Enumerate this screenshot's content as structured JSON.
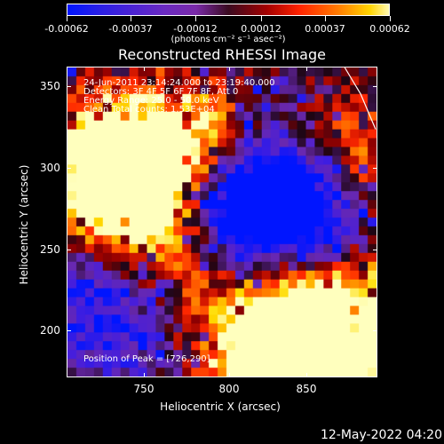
{
  "colorbar": {
    "ticks": [
      "-0.00062",
      "-0.00037",
      "-0.00012",
      "0.00012",
      "0.00037",
      "0.00062"
    ],
    "units": "(photons cm⁻² s⁻¹ asec⁻²)"
  },
  "title": "Reconstructed RHESSI Image",
  "overlay": {
    "time": "24-Jun-2011 23:14:24.000 to 23:19:40.000",
    "detectors": "Detectors: 3F 4F 5F 6F 7F 8F, Att 0",
    "energy": "Energy Range: 25.0 - 50.0 keV",
    "clean": "Clean    Total counts: 1.53E+04",
    "peak": "Position of Peak = [726,290]"
  },
  "chart_data": {
    "type": "heatmap",
    "title": "Reconstructed RHESSI Image",
    "xlabel": "Heliocentric X (arcsec)",
    "ylabel": "Heliocentric Y (arcsec)",
    "xlim": [
      700,
      895
    ],
    "ylim": [
      170,
      362
    ],
    "xticks": [
      750,
      800,
      850
    ],
    "yticks": [
      200,
      250,
      300,
      350
    ],
    "colorbar_ticks": [
      -0.00062,
      -0.00037,
      -0.00012,
      0.00012,
      0.00037,
      0.00062
    ],
    "peak_position": [
      726,
      290
    ],
    "colormap": "blue-purple-black-red-yellow-white",
    "bands": [
      {
        "region": "upper-left",
        "level": "high"
      },
      {
        "region": "upper-right",
        "level": "medium-high"
      },
      {
        "region": "center",
        "level": "low"
      },
      {
        "region": "lower-left",
        "level": "medium"
      },
      {
        "region": "lower-right",
        "level": "high"
      }
    ]
  },
  "timestamp": "12-May-2022 04:20"
}
